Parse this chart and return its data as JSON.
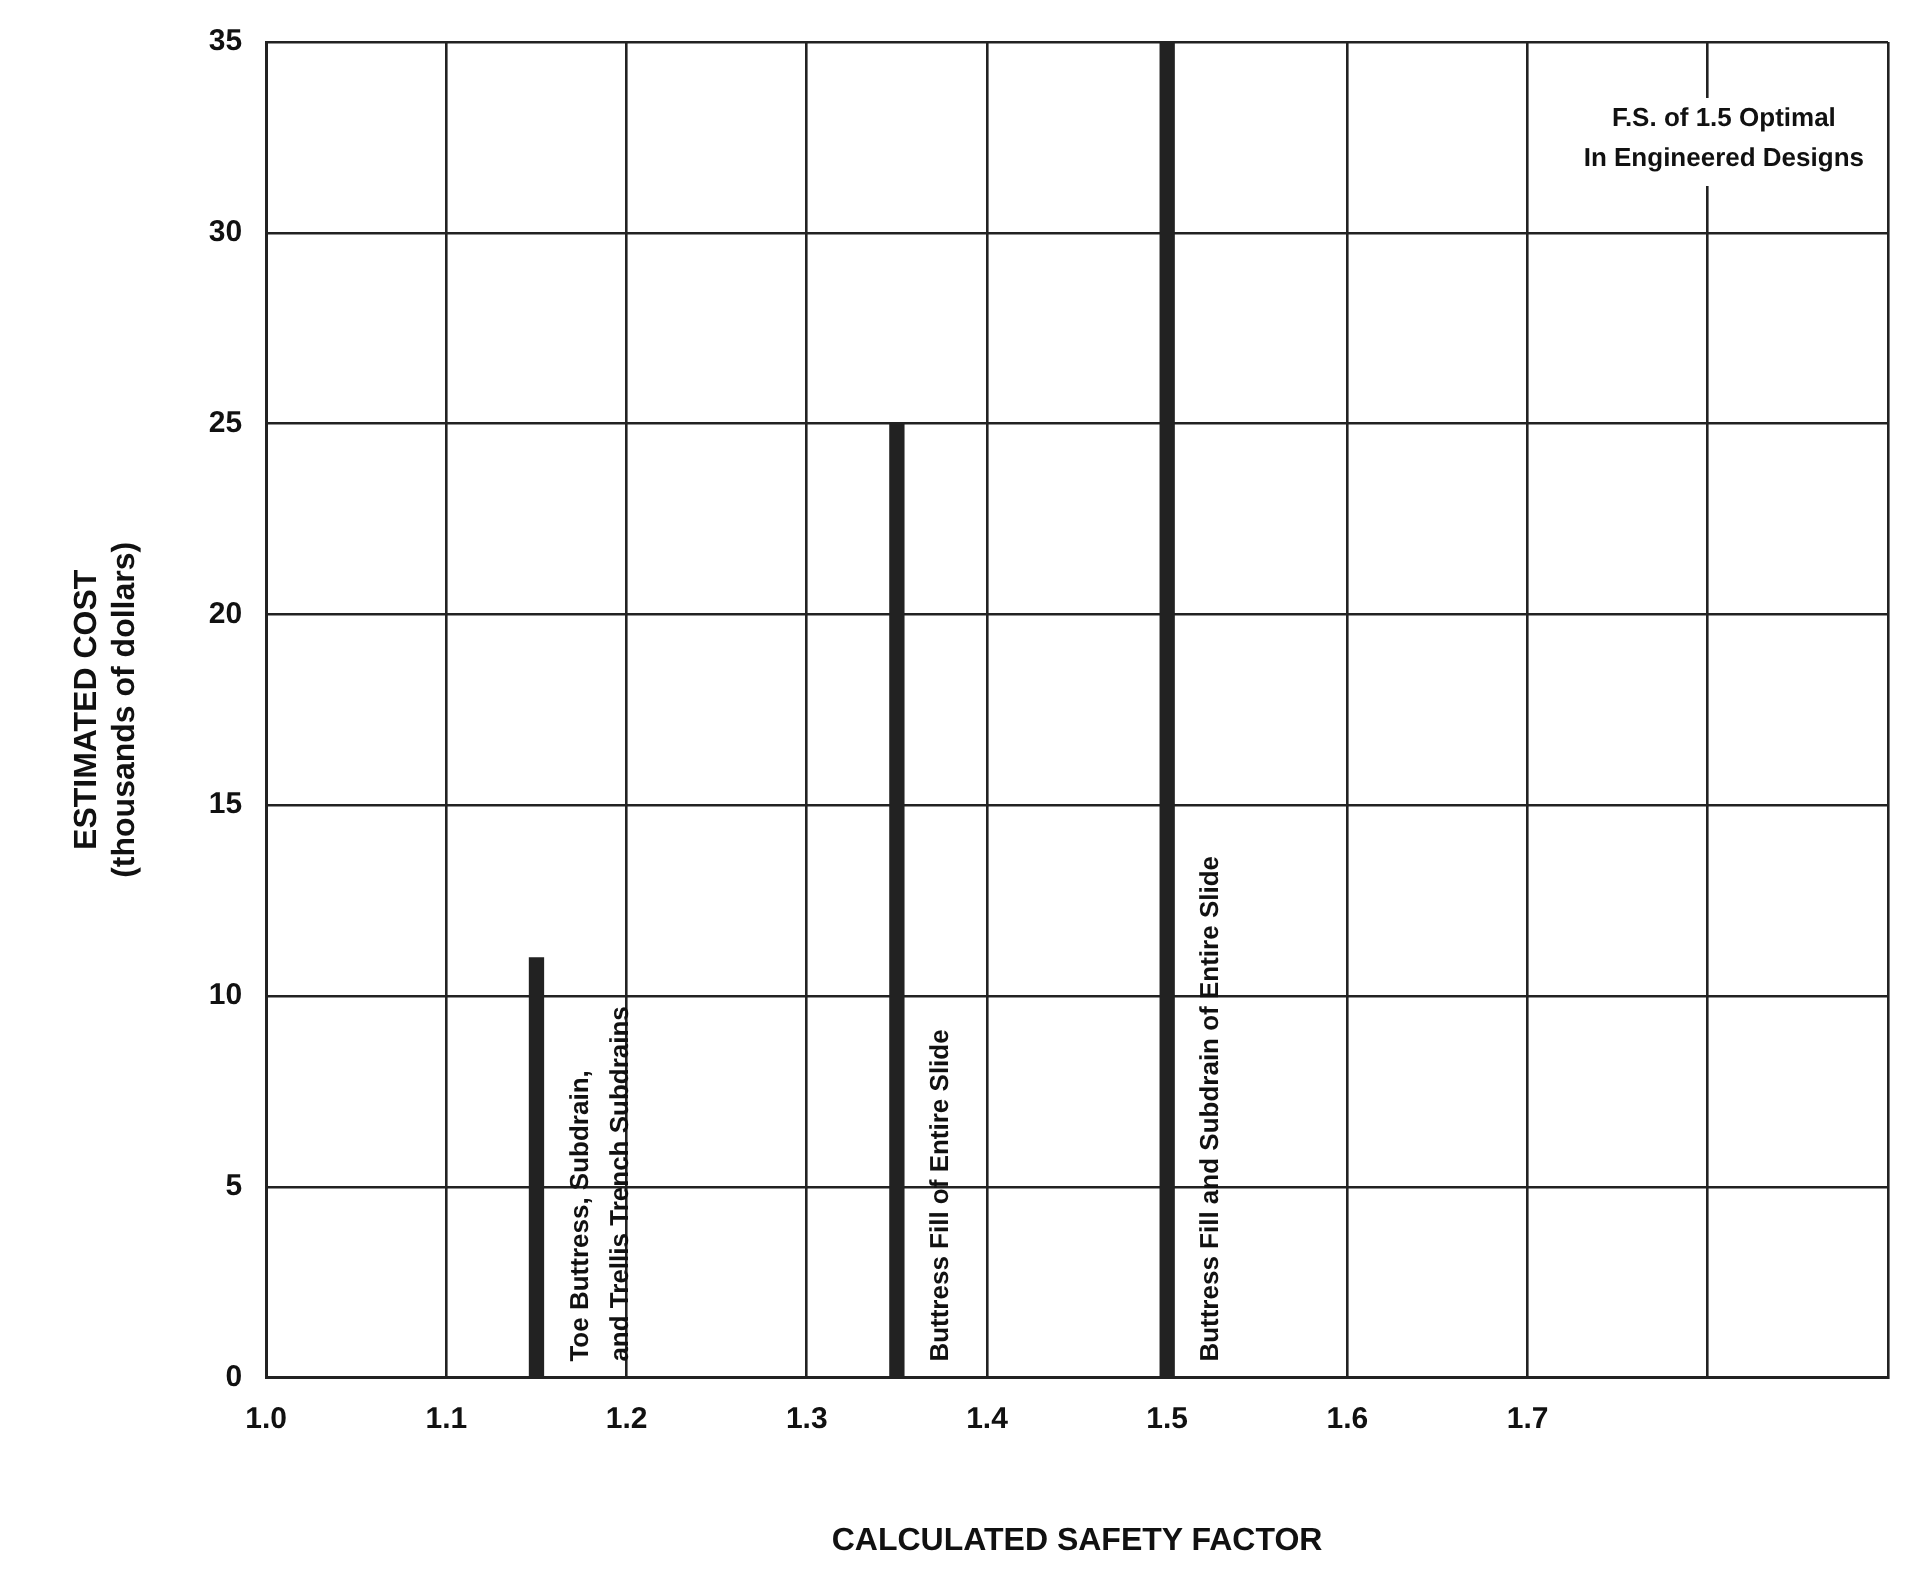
{
  "chart_data": {
    "type": "bar",
    "xlabel": "CALCULATED SAFETY FACTOR",
    "ylabel": "ESTIMATED COST\n(thousands of dollars)",
    "x": [
      1.15,
      1.35,
      1.5
    ],
    "values": [
      11,
      25,
      35
    ],
    "color": "#222222",
    "xlim": [
      1.0,
      1.9
    ],
    "xticks": [
      {
        "value": 1.0,
        "label": "1.0"
      },
      1.1,
      1.2,
      1.3,
      1.4,
      1.5,
      1.6,
      1.7,
      {
        "value": 1.8,
        "label": null
      },
      {
        "value": 1.9,
        "label": null
      }
    ],
    "ylim": [
      0,
      35
    ],
    "yticks": [
      0,
      5,
      10,
      15,
      20,
      25,
      30,
      35
    ],
    "grid": true,
    "annotations": [
      {
        "text": "Toe Buttress, Subdrain,\nand Trellis Trench Subdrains",
        "x": 1.15,
        "y": 0
      },
      {
        "text": "Buttress Fill of Entire Slide",
        "x": 1.35,
        "y": 0
      },
      {
        "text": "Buttress Fill and Subdrain of Entire Slide",
        "x": 1.5,
        "y": 0
      },
      "F.S. of 1.5 Optimal\nIn Engineered Designs"
    ]
  }
}
